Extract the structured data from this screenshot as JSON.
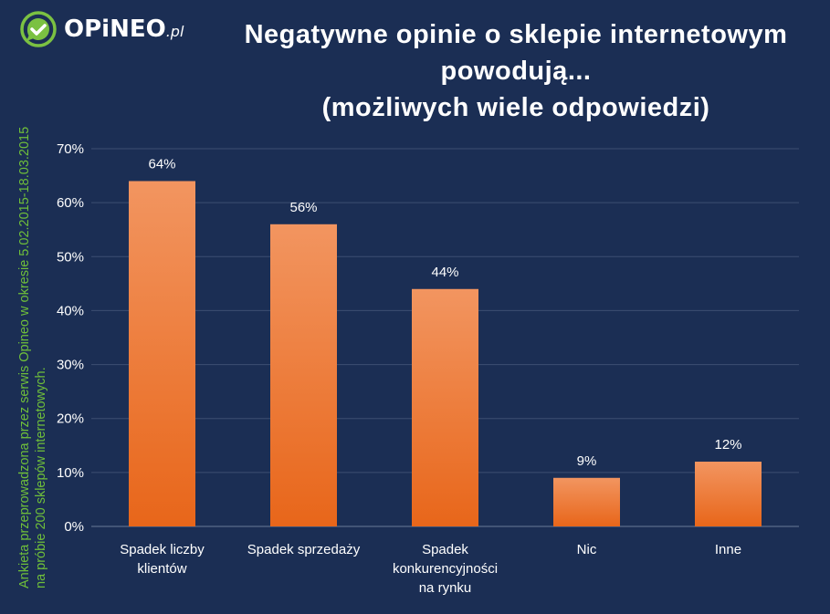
{
  "logo": {
    "name": "OPiNEO",
    "tld": ".pl"
  },
  "chart_data": {
    "type": "bar",
    "title": "Negatywne opinie o sklepie internetowym powodują... (możliwych wiele odpowiedzi)",
    "title_lines": [
      "Negatywne opinie o sklepie internetowym",
      "powodują...",
      "(możliwych wiele odpowiedzi)"
    ],
    "categories": [
      [
        "Spadek liczby",
        "klientów"
      ],
      [
        "Spadek sprzedaży"
      ],
      [
        "Spadek",
        "konkurencyjności",
        "na rynku"
      ],
      [
        "Nic"
      ],
      [
        "Inne"
      ]
    ],
    "values": [
      64,
      56,
      44,
      9,
      12
    ],
    "data_labels": [
      "64%",
      "56%",
      "44%",
      "9%",
      "12%"
    ],
    "ylim": [
      0,
      70
    ],
    "yticks": [
      0,
      10,
      20,
      30,
      40,
      50,
      60,
      70
    ],
    "ytick_labels": [
      "0%",
      "10%",
      "20%",
      "30%",
      "40%",
      "50%",
      "60%",
      "70%"
    ],
    "grid": true,
    "xlabel": "",
    "ylabel": "",
    "colors": {
      "bar_top": "#f29560",
      "bar_bottom": "#e8661a",
      "background": "#1b2e54",
      "grid": "#3c4e72",
      "note": "#6fbf3a"
    }
  },
  "note": [
    "Ankieta przeprowadzona przez serwis Opineo w okresie 5.02.2015-18.03.2015",
    "na próbie 200 sklepów internetowych."
  ]
}
